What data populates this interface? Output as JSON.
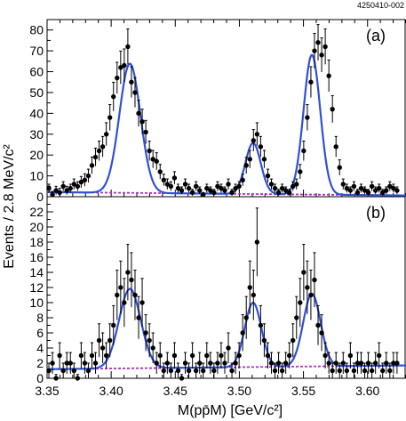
{
  "figure_id": "4250410-002",
  "ylabel": "Events / 2.8 MeV/c²",
  "xlabel": "M(pp̄M) [GeV/c²]",
  "x_tick_labels": [
    "3.35",
    "3.40",
    "3.45",
    "3.50",
    "3.55",
    "3.60"
  ],
  "colors": {
    "fit": "#3050d8",
    "background": "#b02ec8",
    "points": "#000000"
  },
  "chart_data": [
    {
      "type": "scatter",
      "panel_label": "(a)",
      "xlim": [
        3.35,
        3.63
      ],
      "ylim": [
        0,
        85
      ],
      "y_ticks": [
        0,
        10,
        20,
        30,
        40,
        50,
        60,
        70,
        80
      ],
      "points": {
        "x": [
          3.3514,
          3.3542,
          3.357,
          3.3598,
          3.3626,
          3.3654,
          3.3682,
          3.371,
          3.3738,
          3.3766,
          3.3794,
          3.3822,
          3.385,
          3.3878,
          3.3906,
          3.3934,
          3.3962,
          3.399,
          3.4018,
          3.4046,
          3.4074,
          3.4102,
          3.413,
          3.4158,
          3.4186,
          3.4214,
          3.4242,
          3.427,
          3.4298,
          3.4326,
          3.4354,
          3.4382,
          3.441,
          3.4438,
          3.4466,
          3.4494,
          3.4522,
          3.455,
          3.4578,
          3.4606,
          3.4634,
          3.4662,
          3.469,
          3.4718,
          3.4746,
          3.4774,
          3.4802,
          3.483,
          3.4858,
          3.4886,
          3.4914,
          3.4942,
          3.497,
          3.4998,
          3.5026,
          3.5054,
          3.5082,
          3.511,
          3.5138,
          3.5166,
          3.5194,
          3.5222,
          3.525,
          3.5278,
          3.5306,
          3.5334,
          3.5362,
          3.539,
          3.5418,
          3.5446,
          3.5474,
          3.5502,
          3.553,
          3.5558,
          3.5586,
          3.5614,
          3.5642,
          3.567,
          3.5698,
          3.5726,
          3.5754,
          3.5782,
          3.581,
          3.5838,
          3.5866,
          3.5894,
          3.5922,
          3.595,
          3.5978,
          3.6006,
          3.6034,
          3.6062,
          3.609,
          3.6118,
          3.6146,
          3.6174,
          3.6202,
          3.623
        ],
        "y": [
          4,
          1,
          3,
          2,
          5,
          3,
          4,
          6,
          5,
          7,
          8,
          10,
          15,
          19,
          22,
          24,
          30,
          38,
          48,
          57,
          62,
          63,
          72,
          55,
          50,
          40,
          36,
          31,
          22,
          18,
          17,
          12,
          8,
          6,
          5,
          9,
          4,
          3,
          6,
          4,
          2,
          5,
          3,
          1,
          4,
          3,
          2,
          5,
          4,
          3,
          6,
          2,
          4,
          5,
          8,
          15,
          18,
          27,
          30,
          24,
          18,
          10,
          6,
          4,
          2,
          4,
          3,
          2,
          5,
          6,
          12,
          22,
          38,
          55,
          70,
          74,
          68,
          72,
          58,
          42,
          24,
          14,
          6,
          4,
          3,
          5,
          2,
          4,
          3,
          2,
          5,
          3,
          4,
          2,
          3,
          5,
          4,
          3
        ],
        "err": [
          2,
          1.5,
          2,
          2,
          2.2,
          2,
          2,
          2.5,
          2.2,
          2.7,
          3,
          3.2,
          4,
          4.3,
          4.7,
          4.9,
          5.5,
          6.2,
          6.9,
          7.5,
          7.9,
          7.9,
          8.5,
          7.4,
          7.1,
          6.3,
          6,
          5.6,
          4.7,
          4.2,
          4.1,
          3.5,
          2.8,
          2.5,
          2.2,
          3,
          2,
          1.7,
          2.5,
          2,
          1.5,
          2.2,
          1.7,
          1,
          2,
          1.7,
          1.5,
          2.2,
          2,
          1.7,
          2.5,
          1.5,
          2,
          2.2,
          2.8,
          3.9,
          4.2,
          5.2,
          5.5,
          4.9,
          4.2,
          3.2,
          2.5,
          2,
          1.5,
          2,
          1.7,
          1.5,
          2.2,
          2.5,
          3.5,
          4.7,
          6.2,
          7.4,
          8.4,
          8.6,
          8.2,
          8.5,
          7.6,
          6.5,
          4.9,
          3.7,
          2.5,
          2,
          1.7,
          2.2,
          1.5,
          2,
          1.7,
          1.5,
          2.2,
          1.7,
          2,
          1.5,
          1.7,
          2.2,
          2,
          1.7
        ]
      },
      "fit": {
        "background": {
          "x": [
            3.35,
            3.63
          ],
          "y": [
            2.2,
            0.6
          ]
        },
        "peaks": [
          {
            "mean": 3.4146,
            "sigma": 0.0082,
            "amp": 62
          },
          {
            "mean": 3.5107,
            "sigma": 0.006,
            "amp": 24.5
          },
          {
            "mean": 3.5566,
            "sigma": 0.0065,
            "amp": 67
          }
        ]
      }
    },
    {
      "type": "scatter",
      "panel_label": "(b)",
      "xlim": [
        3.35,
        3.63
      ],
      "ylim": [
        0,
        24
      ],
      "y_ticks": [
        0,
        2,
        4,
        6,
        8,
        10,
        12,
        14,
        16,
        18,
        20,
        22
      ],
      "points": {
        "x": [
          3.3514,
          3.3542,
          3.357,
          3.3598,
          3.3626,
          3.3654,
          3.3682,
          3.371,
          3.3738,
          3.3766,
          3.3794,
          3.3822,
          3.385,
          3.3878,
          3.3906,
          3.3934,
          3.3962,
          3.399,
          3.4018,
          3.4046,
          3.4074,
          3.4102,
          3.413,
          3.4158,
          3.4186,
          3.4214,
          3.4242,
          3.427,
          3.4298,
          3.4326,
          3.4354,
          3.4382,
          3.441,
          3.4438,
          3.4466,
          3.4494,
          3.4522,
          3.455,
          3.4578,
          3.4606,
          3.4634,
          3.4662,
          3.469,
          3.4718,
          3.4746,
          3.4774,
          3.4802,
          3.483,
          3.4858,
          3.4886,
          3.4914,
          3.4942,
          3.497,
          3.4998,
          3.5026,
          3.5054,
          3.5082,
          3.511,
          3.5138,
          3.5166,
          3.5194,
          3.5222,
          3.525,
          3.5278,
          3.5306,
          3.5334,
          3.5362,
          3.539,
          3.5418,
          3.5446,
          3.5474,
          3.5502,
          3.553,
          3.5558,
          3.5586,
          3.5614,
          3.5642,
          3.567,
          3.5698,
          3.5726,
          3.5754,
          3.5782,
          3.581,
          3.5838,
          3.5866,
          3.5894,
          3.5922,
          3.595,
          3.5978,
          3.6006,
          3.6034,
          3.6062,
          3.609,
          3.6118,
          3.6146,
          3.6174,
          3.6202,
          3.623
        ],
        "y": [
          1,
          2,
          0,
          3,
          1,
          2,
          2,
          1,
          0,
          3,
          2,
          1,
          3,
          2,
          5,
          4,
          3,
          5,
          7,
          11,
          12,
          10,
          14,
          13,
          11,
          8,
          10,
          6,
          5,
          4,
          2,
          3,
          1,
          2,
          1,
          3,
          1,
          0,
          2,
          1,
          3,
          1,
          2,
          1,
          3,
          2,
          1,
          2,
          3,
          2,
          4,
          1,
          2,
          3,
          6,
          8,
          12,
          11,
          18,
          7,
          5,
          3,
          2,
          1,
          2,
          1,
          2,
          3,
          5,
          8,
          10,
          14,
          12,
          11,
          13,
          7,
          6,
          3,
          2,
          1,
          2,
          1,
          2,
          1,
          3,
          1,
          2,
          2,
          1,
          2,
          1,
          2,
          3,
          1,
          2,
          1,
          2,
          2
        ],
        "err": [
          1,
          1.4,
          0.5,
          1.7,
          1,
          1.4,
          1.4,
          1,
          0.5,
          1.7,
          1.4,
          1,
          1.7,
          1.4,
          2.2,
          2,
          1.7,
          2.2,
          2.6,
          3.3,
          3.5,
          3.2,
          3.7,
          3.6,
          3.3,
          2.8,
          3.2,
          2.4,
          2.2,
          2,
          1.4,
          1.7,
          1,
          1.4,
          1,
          1.7,
          1,
          0.5,
          1.4,
          1,
          1.7,
          1,
          1.4,
          1,
          1.7,
          1.4,
          1,
          1.4,
          1.7,
          1.4,
          2,
          1,
          1.4,
          1.7,
          2.4,
          2.8,
          3.5,
          3.3,
          4.5,
          2.6,
          2.2,
          1.7,
          1.4,
          1,
          1.4,
          1,
          1.4,
          1.7,
          2.2,
          2.8,
          3.2,
          3.7,
          3.5,
          3.3,
          3.6,
          2.6,
          2.4,
          1.7,
          1.4,
          1,
          1.4,
          1,
          1.4,
          1,
          1.7,
          1,
          1.4,
          1.4,
          1,
          1.4,
          1,
          1.4,
          1.7,
          1,
          1.4,
          1,
          1.4,
          1.4
        ]
      },
      "fit": {
        "background": {
          "x": [
            3.35,
            3.63
          ],
          "y": [
            1.2,
            1.7
          ]
        },
        "peaks": [
          {
            "mean": 3.4146,
            "sigma": 0.0085,
            "amp": 10.5
          },
          {
            "mean": 3.5107,
            "sigma": 0.0065,
            "amp": 8.5
          },
          {
            "mean": 3.5566,
            "sigma": 0.0068,
            "amp": 9.6
          }
        ]
      }
    }
  ]
}
